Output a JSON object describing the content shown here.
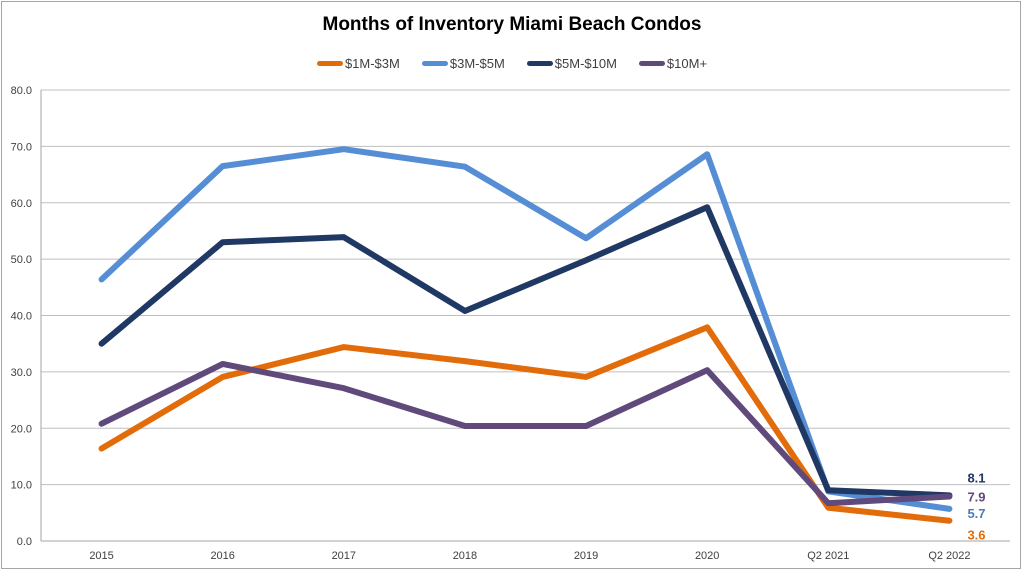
{
  "chart_data": {
    "type": "line",
    "title": "Months of Inventory Miami Beach Condos",
    "xlabel": "",
    "ylabel": "",
    "categories": [
      "2015",
      "2016",
      "2017",
      "2018",
      "2019",
      "2020",
      "Q2 2021",
      "Q2 2022"
    ],
    "ylim": [
      0,
      80
    ],
    "yticks": [
      "0.0",
      "10.0",
      "20.0",
      "30.0",
      "40.0",
      "50.0",
      "60.0",
      "70.0",
      "80.0"
    ],
    "grid": true,
    "legend_position": "top-center",
    "series": [
      {
        "name": "$1M-$3M",
        "color": "#e36c0a",
        "values": [
          16.4,
          29.1,
          34.4,
          31.9,
          29.1,
          37.9,
          5.9,
          3.6
        ],
        "end_label": "3.6",
        "end_label_color": "#e36c0a"
      },
      {
        "name": "$3M-$5M",
        "color": "#558ed5",
        "values": [
          46.4,
          66.5,
          69.5,
          66.4,
          53.7,
          68.6,
          8.8,
          5.7
        ],
        "end_label": "5.7",
        "end_label_color": "#4a7ebb"
      },
      {
        "name": "$5M-$10M",
        "color": "#1f3864",
        "values": [
          35.0,
          53.0,
          53.9,
          40.8,
          49.8,
          59.2,
          9.0,
          8.1
        ],
        "end_label": "8.1",
        "end_label_color": "#1f3864"
      },
      {
        "name": "$10M+",
        "color": "#604a7b",
        "values": [
          20.8,
          31.4,
          27.1,
          20.4,
          20.4,
          30.3,
          6.7,
          7.9
        ],
        "end_label": "7.9",
        "end_label_color": "#604a7b"
      }
    ]
  }
}
